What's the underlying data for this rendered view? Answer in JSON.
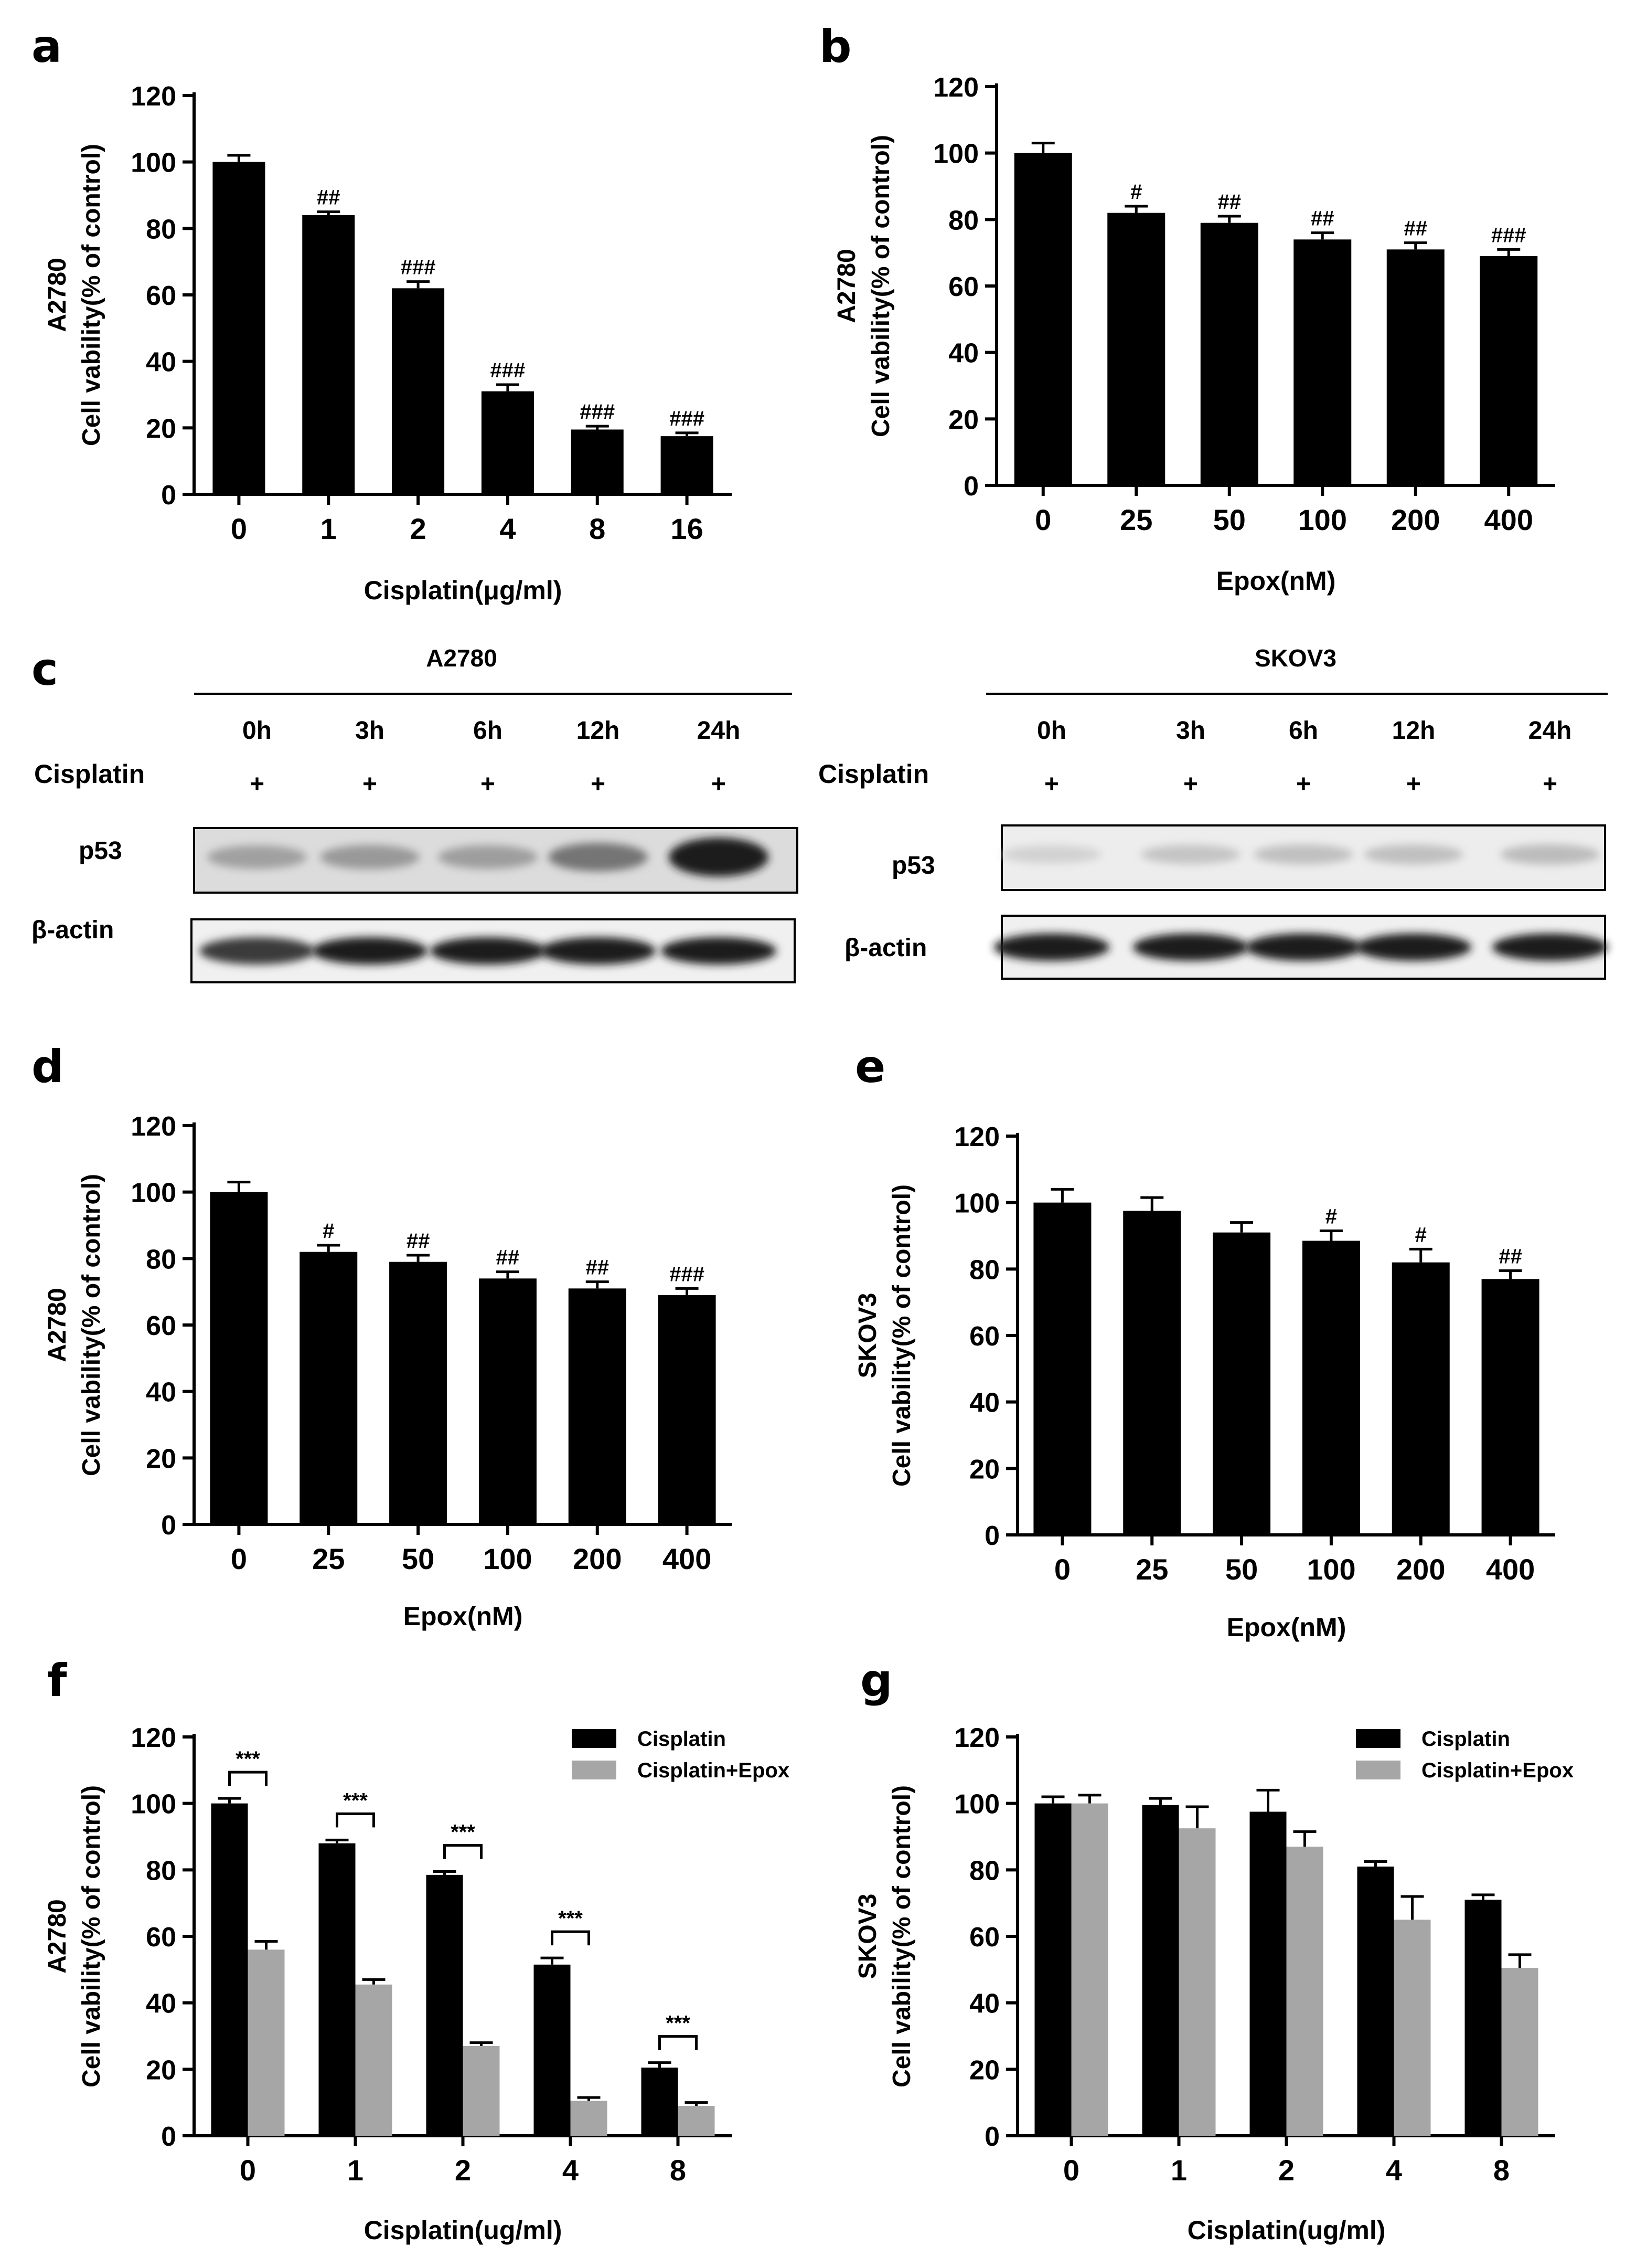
{
  "chart_data": [
    {
      "panel": "a",
      "type": "bar",
      "categories": [
        "0",
        "1",
        "2",
        "4",
        "8",
        "16"
      ],
      "values": [
        100,
        84,
        62,
        31,
        19.5,
        17.5
      ],
      "errors": [
        2,
        1,
        2,
        2,
        1,
        1
      ],
      "annotations": [
        "",
        "##",
        "###",
        "###",
        "###",
        "###"
      ],
      "xlabel": "Cisplatin(μg/ml)",
      "ylabel": "Cell vability(% of control)",
      "ylabel_top": "A2780",
      "yticks": [
        "0",
        "20",
        "40",
        "60",
        "80",
        "100",
        "120"
      ],
      "ylim": [
        0,
        120
      ],
      "color": "#000000"
    },
    {
      "panel": "b",
      "type": "bar",
      "categories": [
        "0",
        "25",
        "50",
        "100",
        "200",
        "400"
      ],
      "values": [
        100,
        82,
        79,
        74,
        71,
        69
      ],
      "errors": [
        3,
        2,
        2,
        2,
        2,
        2
      ],
      "annotations": [
        "",
        "#",
        "##",
        "##",
        "##",
        "###"
      ],
      "xlabel": "Epox(nM)",
      "ylabel": "Cell vability(% of control)",
      "ylabel_top": "A2780",
      "yticks": [
        "0",
        "20",
        "40",
        "60",
        "80",
        "100",
        "120"
      ],
      "ylim": [
        0,
        120
      ],
      "color": "#000000"
    },
    {
      "panel": "d",
      "type": "bar",
      "categories": [
        "0",
        "25",
        "50",
        "100",
        "200",
        "400"
      ],
      "values": [
        100,
        82,
        79,
        74,
        71,
        69
      ],
      "errors": [
        3,
        2,
        2,
        2,
        2,
        2
      ],
      "annotations": [
        "",
        "#",
        "##",
        "##",
        "##",
        "###"
      ],
      "xlabel": "Epox(nM)",
      "ylabel": "Cell vability(% of control)",
      "ylabel_top": "A2780",
      "yticks": [
        "0",
        "20",
        "40",
        "60",
        "80",
        "100",
        "120"
      ],
      "ylim": [
        0,
        120
      ],
      "color": "#000000"
    },
    {
      "panel": "e",
      "type": "bar",
      "categories": [
        "0",
        "25",
        "50",
        "100",
        "200",
        "400"
      ],
      "values": [
        100,
        97.5,
        91,
        88.5,
        82,
        77
      ],
      "errors": [
        4,
        4,
        3,
        3,
        4,
        2.5
      ],
      "annotations": [
        "",
        "",
        "",
        "#",
        "#",
        "##"
      ],
      "xlabel": "Epox(nM)",
      "ylabel": "Cell vability(% of control)",
      "ylabel_top": "SKOV3",
      "yticks": [
        "0",
        "20",
        "40",
        "60",
        "80",
        "100",
        "120"
      ],
      "ylim": [
        0,
        120
      ],
      "color": "#000000"
    },
    {
      "panel": "f",
      "type": "bar",
      "categories": [
        "0",
        "1",
        "2",
        "4",
        "8"
      ],
      "series": [
        {
          "name": "Cisplatin",
          "values": [
            100,
            88,
            78.5,
            51.5,
            20.5
          ],
          "errors": [
            1.5,
            1,
            1,
            2,
            1.5
          ],
          "color": "#000000"
        },
        {
          "name": "Cisplatin+Epox",
          "values": [
            56,
            45.5,
            27,
            10.5,
            9
          ],
          "errors": [
            2.5,
            1.5,
            1,
            1,
            1
          ],
          "color": "#a6a6a6"
        }
      ],
      "significance": [
        "***",
        "***",
        "***",
        "***",
        "***"
      ],
      "xlabel": "Cisplatin(ug/ml)",
      "ylabel": "Cell vability(% of control)",
      "ylabel_top": "A2780",
      "yticks": [
        "0",
        "20",
        "40",
        "60",
        "80",
        "100",
        "120"
      ],
      "ylim": [
        0,
        120
      ],
      "legend": "top-right"
    },
    {
      "panel": "g",
      "type": "bar",
      "categories": [
        "0",
        "1",
        "2",
        "4",
        "8"
      ],
      "series": [
        {
          "name": "Cisplatin",
          "values": [
            100,
            99.5,
            97.5,
            81,
            71
          ],
          "errors": [
            2,
            2,
            6.5,
            1.5,
            1.5
          ],
          "color": "#000000"
        },
        {
          "name": "Cisplatin+Epox",
          "values": [
            100,
            92.5,
            87,
            65,
            50.5
          ],
          "errors": [
            2.5,
            6.5,
            4.5,
            7,
            4
          ],
          "color": "#a6a6a6"
        }
      ],
      "xlabel": "Cisplatin(ug/ml)",
      "ylabel": "Cell vability(% of control)",
      "ylabel_top": "SKOV3",
      "yticks": [
        "0",
        "20",
        "40",
        "60",
        "80",
        "100",
        "120"
      ],
      "ylim": [
        0,
        120
      ],
      "legend": "top-right"
    }
  ],
  "western": [
    {
      "cell_line": "A2780",
      "timepoints": [
        "0h",
        "3h",
        "6h",
        "12h",
        "24h"
      ],
      "treatment_label": "Cisplatin",
      "treatment_marks": [
        "+",
        "+",
        "+",
        "+",
        "+"
      ],
      "p53_label": "p53",
      "actin_label": "β-actin",
      "p53_intensity": [
        0.35,
        0.38,
        0.36,
        0.55,
        0.95
      ],
      "actin_intensity": [
        0.8,
        0.95,
        0.95,
        0.95,
        0.95
      ]
    },
    {
      "cell_line": "SKOV3",
      "timepoints": [
        "0h",
        "3h",
        "6h",
        "12h",
        "24h"
      ],
      "treatment_label": "Cisplatin",
      "treatment_marks": [
        "+",
        "+",
        "+",
        "+",
        "+"
      ],
      "p53_label": "p53",
      "actin_label": "β-actin",
      "p53_intensity": [
        0.12,
        0.18,
        0.2,
        0.2,
        0.22
      ],
      "actin_intensity": [
        0.95,
        0.95,
        0.95,
        0.95,
        0.95
      ]
    }
  ],
  "panel_labels": {
    "a": "a",
    "b": "b",
    "c": "c",
    "d": "d",
    "e": "e",
    "f": "f",
    "g": "g"
  }
}
